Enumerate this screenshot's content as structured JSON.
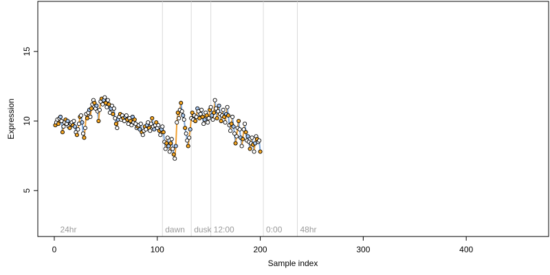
{
  "chart_data": {
    "type": "scatter",
    "xlabel": "Sample index",
    "ylabel": "Expression",
    "xlim": [
      -16,
      480
    ],
    "ylim": [
      1.7,
      18.6
    ],
    "x_ticks": [
      0,
      100,
      200,
      300,
      400
    ],
    "y_ticks": [
      5,
      10,
      15
    ],
    "grid": false,
    "legend": "none",
    "annotations": [
      {
        "x": 105,
        "label": "dawn"
      },
      {
        "x": 133,
        "label": "dusk"
      },
      {
        "x": 152,
        "label": "12:00"
      },
      {
        "x": 203,
        "label": "0:00"
      },
      {
        "x": 236,
        "label": "48hr"
      }
    ],
    "annotation_label_only": [
      {
        "x": 3,
        "label": "24hr"
      }
    ],
    "colors": {
      "point_outline": "#000000",
      "point_fill_a": "#f5a623",
      "point_fill_b": "#a9c8f0",
      "point_fill_c": "#ffffff",
      "segment_orange": "#f0a030",
      "segment_blue": "#7aa4d8",
      "vline": "#d9d9d9",
      "annotation_text": "#9a9a9a"
    },
    "series": [
      {
        "values": [
          [
            1,
            9.7
          ],
          [
            2,
            9.9
          ],
          [
            3,
            10.1
          ],
          [
            4,
            9.8
          ],
          [
            5,
            10.2
          ],
          [
            6,
            10.3
          ],
          [
            7,
            10.0
          ],
          [
            8,
            9.2
          ],
          [
            9,
            9.6
          ],
          [
            10,
            9.9
          ],
          [
            11,
            10.1
          ],
          [
            12,
            9.8
          ],
          [
            13,
            10.0
          ],
          [
            14,
            9.6
          ],
          [
            15,
            9.5
          ],
          [
            16,
            9.8
          ],
          [
            17,
            9.9
          ],
          [
            18,
            9.7
          ],
          [
            19,
            10.0
          ],
          [
            20,
            9.6
          ],
          [
            21,
            9.2
          ],
          [
            22,
            9.0
          ],
          [
            23,
            9.4
          ],
          [
            24,
            9.8
          ],
          [
            25,
            10.3
          ],
          [
            26,
            10.4
          ],
          [
            27,
            9.9
          ],
          [
            28,
            9.1
          ],
          [
            29,
            8.8
          ],
          [
            30,
            9.5
          ],
          [
            31,
            10.5
          ],
          [
            32,
            10.2
          ],
          [
            33,
            10.6
          ],
          [
            34,
            10.8
          ],
          [
            35,
            10.3
          ],
          [
            36,
            10.9
          ],
          [
            37,
            11.2
          ],
          [
            38,
            11.5
          ],
          [
            39,
            11.3
          ],
          [
            40,
            10.9
          ],
          [
            41,
            11.1
          ],
          [
            42,
            10.7
          ],
          [
            43,
            10.0
          ],
          [
            44,
            10.8
          ],
          [
            45,
            11.4
          ],
          [
            46,
            11.6
          ],
          [
            47,
            11.2
          ],
          [
            48,
            11.5
          ],
          [
            49,
            11.7
          ],
          [
            50,
            11.3
          ],
          [
            51,
            11.0
          ],
          [
            52,
            11.5
          ],
          [
            53,
            11.2
          ],
          [
            54,
            10.6
          ],
          [
            55,
            10.9
          ],
          [
            56,
            11.1
          ],
          [
            57,
            10.5
          ],
          [
            58,
            10.9
          ],
          [
            59,
            10.2
          ],
          [
            60,
            9.8
          ],
          [
            61,
            9.5
          ],
          [
            62,
            10.1
          ],
          [
            63,
            10.3
          ],
          [
            64,
            10.5
          ],
          [
            65,
            10.1
          ],
          [
            66,
            10.4
          ],
          [
            67,
            10.2
          ],
          [
            68,
            10.0
          ],
          [
            69,
            10.3
          ],
          [
            70,
            10.4
          ],
          [
            71,
            10.1
          ],
          [
            72,
            9.8
          ],
          [
            73,
            10.2
          ],
          [
            74,
            10.0
          ],
          [
            75,
            9.7
          ],
          [
            76,
            10.3
          ],
          [
            77,
            9.9
          ],
          [
            78,
            10.1
          ],
          [
            79,
            9.8
          ],
          [
            80,
            9.5
          ],
          [
            81,
            9.6
          ],
          [
            82,
            9.7
          ],
          [
            83,
            9.4
          ],
          [
            84,
            9.8
          ],
          [
            85,
            9.2
          ],
          [
            86,
            9.0
          ],
          [
            87,
            9.3
          ],
          [
            88,
            9.6
          ],
          [
            89,
            9.4
          ],
          [
            90,
            9.7
          ],
          [
            91,
            9.9
          ],
          [
            92,
            9.5
          ],
          [
            93,
            9.3
          ],
          [
            94,
            9.8
          ],
          [
            95,
            10.2
          ],
          [
            96,
            9.6
          ],
          [
            97,
            9.4
          ],
          [
            98,
            9.7
          ],
          [
            99,
            9.9
          ],
          [
            100,
            9.5
          ],
          [
            101,
            9.7
          ],
          [
            102,
            9.3
          ],
          [
            103,
            9.0
          ],
          [
            104,
            9.4
          ],
          [
            105,
            9.6
          ],
          [
            106,
            9.2
          ],
          [
            107,
            8.5
          ],
          [
            108,
            8.0
          ],
          [
            109,
            8.4
          ],
          [
            110,
            8.8
          ],
          [
            111,
            8.2
          ],
          [
            112,
            7.8
          ],
          [
            113,
            8.4
          ],
          [
            114,
            8.7
          ],
          [
            115,
            8.0
          ],
          [
            116,
            7.6
          ],
          [
            117,
            7.3
          ],
          [
            118,
            8.2
          ],
          [
            119,
            9.9
          ],
          [
            120,
            10.6
          ],
          [
            121,
            10.2
          ],
          [
            122,
            10.8
          ],
          [
            123,
            11.3
          ],
          [
            124,
            10.7
          ],
          [
            125,
            10.4
          ],
          [
            126,
            10.1
          ],
          [
            127,
            9.5
          ],
          [
            128,
            9.1
          ],
          [
            129,
            8.6
          ],
          [
            130,
            8.2
          ],
          [
            131,
            8.8
          ],
          [
            132,
            9.4
          ],
          [
            133,
            10.2
          ],
          [
            134,
            10.6
          ],
          [
            135,
            10.1
          ],
          [
            136,
            10.4
          ],
          [
            137,
            10.0
          ],
          [
            138,
            10.3
          ],
          [
            139,
            10.9
          ],
          [
            140,
            10.7
          ],
          [
            141,
            10.2
          ],
          [
            142,
            10.5
          ],
          [
            143,
            10.8
          ],
          [
            144,
            10.3
          ],
          [
            145,
            9.8
          ],
          [
            146,
            10.1
          ],
          [
            147,
            10.6
          ],
          [
            148,
            10.4
          ],
          [
            149,
            9.9
          ],
          [
            150,
            10.2
          ],
          [
            151,
            10.8
          ],
          [
            152,
            11.0
          ],
          [
            153,
            10.4
          ],
          [
            154,
            10.1
          ],
          [
            155,
            10.6
          ],
          [
            156,
            11.5
          ],
          [
            157,
            10.9
          ],
          [
            158,
            10.2
          ],
          [
            159,
            10.7
          ],
          [
            160,
            11.1
          ],
          [
            161,
            10.5
          ],
          [
            162,
            10.0
          ],
          [
            163,
            10.4
          ],
          [
            164,
            10.8
          ],
          [
            165,
            10.3
          ],
          [
            166,
            9.9
          ],
          [
            167,
            10.5
          ],
          [
            168,
            11.0
          ],
          [
            169,
            10.4
          ],
          [
            170,
            9.7
          ],
          [
            171,
            9.3
          ],
          [
            172,
            9.8
          ],
          [
            173,
            10.3
          ],
          [
            174,
            9.6
          ],
          [
            175,
            9.1
          ],
          [
            176,
            8.4
          ],
          [
            177,
            8.9
          ],
          [
            178,
            9.5
          ],
          [
            179,
            10.0
          ],
          [
            180,
            9.4
          ],
          [
            181,
            8.8
          ],
          [
            182,
            8.2
          ],
          [
            183,
            8.7
          ],
          [
            184,
            9.4
          ],
          [
            185,
            9.8
          ],
          [
            186,
            9.2
          ],
          [
            187,
            8.6
          ],
          [
            188,
            8.9
          ],
          [
            189,
            8.5
          ],
          [
            190,
            8.0
          ],
          [
            191,
            8.4
          ],
          [
            192,
            8.8
          ],
          [
            193,
            8.3
          ],
          [
            194,
            7.8
          ],
          [
            195,
            8.4
          ],
          [
            196,
            8.9
          ],
          [
            197,
            8.7
          ],
          [
            198,
            8.5
          ],
          [
            199,
            8.6
          ],
          [
            200,
            7.8
          ]
        ]
      }
    ]
  }
}
